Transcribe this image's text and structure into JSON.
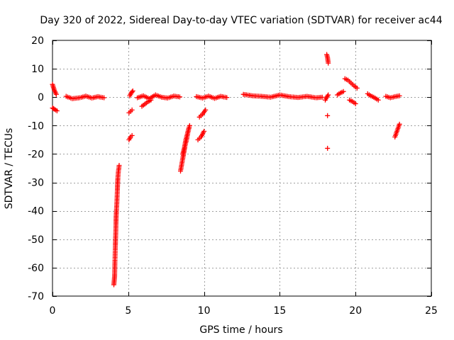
{
  "chart_data": {
    "type": "scatter",
    "title": "Day 320 of 2022, Sidereal Day-to-day VTEC variation (SDTVAR) for receiver ac44",
    "xlabel": "GPS time / hours",
    "ylabel": "SDTVAR / TECUs",
    "xlim": [
      0,
      25
    ],
    "ylim": [
      -70,
      20
    ],
    "xticks": [
      0,
      5,
      10,
      15,
      20,
      25
    ],
    "yticks": [
      20,
      10,
      0,
      -10,
      -20,
      -30,
      -40,
      -50,
      -60,
      -70
    ],
    "grid": true,
    "marker": "+",
    "marker_color": "#ff0000",
    "series": [
      {
        "name": "SDTVAR",
        "segments": [
          {
            "x": [
              0.0,
              0.12,
              0.25
            ],
            "y": [
              4.5,
              2.5,
              1.0
            ]
          },
          {
            "x": [
              0.0,
              0.12,
              0.3
            ],
            "y": [
              -3.8,
              -4.2,
              -4.8
            ]
          },
          {
            "x": [
              0.9,
              1.3,
              1.8,
              2.2,
              2.6,
              3.0,
              3.4
            ],
            "y": [
              0.3,
              -0.5,
              -0.2,
              0.4,
              -0.3,
              0.2,
              -0.2
            ]
          },
          {
            "x": [
              4.05,
              4.1,
              4.12,
              4.15,
              4.18,
              4.2,
              4.25,
              4.28,
              4.3,
              4.32,
              4.35,
              4.38,
              4.4
            ],
            "y": [
              -66,
              -63,
              -58,
              -52,
              -47,
              -42,
              -37,
              -33,
              -30,
              -28,
              -26,
              -25,
              -24
            ]
          },
          {
            "x": [
              5.05,
              5.15,
              5.25
            ],
            "y": [
              -15.0,
              -14.0,
              -13.5
            ]
          },
          {
            "x": [
              5.05,
              5.15,
              5.25
            ],
            "y": [
              -5.5,
              -5.0,
              -4.5
            ]
          },
          {
            "x": [
              5.1,
              5.2,
              5.3
            ],
            "y": [
              0.5,
              1.5,
              2.2
            ]
          },
          {
            "x": [
              5.6,
              6.0,
              6.4,
              6.8,
              7.2,
              7.6,
              8.0,
              8.4
            ],
            "y": [
              -0.2,
              0.5,
              -0.5,
              0.8,
              0.0,
              -0.3,
              0.4,
              0.1
            ]
          },
          {
            "x": [
              5.9,
              6.1,
              6.3,
              6.5
            ],
            "y": [
              -3.2,
              -2.4,
              -1.6,
              -1.0
            ]
          },
          {
            "x": [
              8.45,
              8.55,
              8.65,
              8.75,
              8.85,
              8.95,
              9.05
            ],
            "y": [
              -26,
              -23,
              -20,
              -17,
              -15,
              -12,
              -10
            ]
          },
          {
            "x": [
              8.6,
              8.7,
              8.8,
              8.9,
              9.0
            ],
            "y": [
              -20,
              -18,
              -15,
              -13,
              -11
            ]
          },
          {
            "x": [
              9.6,
              9.8,
              10.0
            ],
            "y": [
              -15,
              -14,
              -12
            ]
          },
          {
            "x": [
              9.7,
              9.9,
              10.1
            ],
            "y": [
              -7,
              -6,
              -4.5
            ]
          },
          {
            "x": [
              9.5,
              9.9,
              10.3,
              10.7,
              11.1,
              11.5
            ],
            "y": [
              0.2,
              -0.3,
              0.4,
              -0.4,
              0.3,
              -0.1
            ]
          },
          {
            "x": [
              12.6,
              13.2,
              13.8,
              14.4,
              15.0,
              15.6,
              16.2,
              16.8,
              17.4,
              17.8
            ],
            "y": [
              1.0,
              0.5,
              0.3,
              0.0,
              0.8,
              0.2,
              -0.1,
              0.3,
              -0.2,
              0.0
            ]
          },
          {
            "x": [
              18.0,
              18.1,
              18.2
            ],
            "y": [
              -1.0,
              0.0,
              0.8
            ]
          },
          {
            "x": [
              18.1,
              18.15,
              18.2
            ],
            "y": [
              15,
              14,
              12
            ]
          },
          {
            "x": [
              18.15
            ],
            "y": [
              -6.5
            ]
          },
          {
            "x": [
              18.15
            ],
            "y": [
              -18
            ]
          },
          {
            "x": [
              18.8,
              19.0,
              19.2
            ],
            "y": [
              0.8,
              1.5,
              2.0
            ]
          },
          {
            "x": [
              19.3,
              19.5,
              19.7,
              19.9,
              20.1
            ],
            "y": [
              6.5,
              6.0,
              5.0,
              4.0,
              3.2
            ]
          },
          {
            "x": [
              19.6,
              19.8,
              20.0
            ],
            "y": [
              -1.0,
              -1.5,
              -2.3
            ]
          },
          {
            "x": [
              20.8,
              21.0,
              21.2,
              21.5
            ],
            "y": [
              1.2,
              0.5,
              0.0,
              -1.0
            ]
          },
          {
            "x": [
              22.0,
              22.3,
              22.6,
              22.9
            ],
            "y": [
              0.3,
              -0.2,
              0.2,
              0.5
            ]
          },
          {
            "x": [
              22.6,
              22.7,
              22.8,
              22.9
            ],
            "y": [
              -14,
              -12.5,
              -11,
              -9.5
            ]
          }
        ]
      }
    ]
  }
}
